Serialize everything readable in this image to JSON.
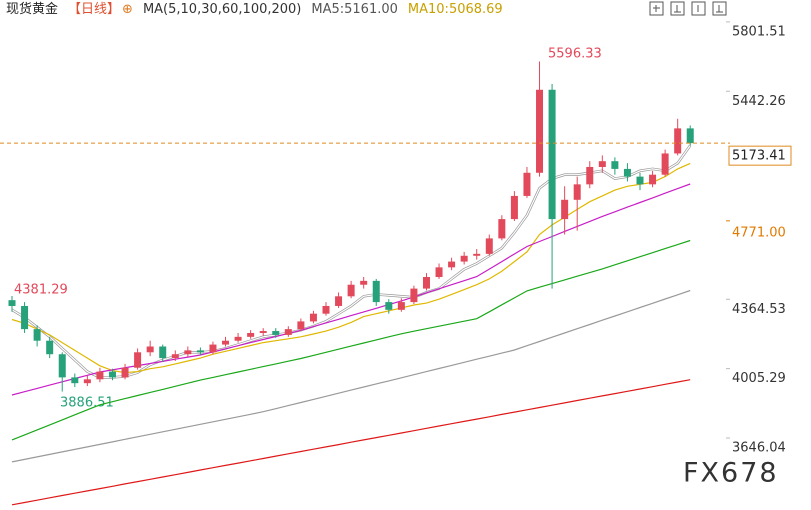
{
  "chart_data": {
    "type": "candlestick",
    "header": {
      "instrument": "现货黄金",
      "period": "【日线】",
      "ma_setting": "MA(5,10,30,60,100,200)",
      "ma5": "MA5:5161.00",
      "ma10": "MA10:5068.69"
    },
    "watermark": "FX678",
    "up_color": "#e2495b",
    "down_color": "#26a17a",
    "open": [
      4360,
      4330,
      4210,
      4150,
      4080,
      3960,
      3930,
      3950,
      3990,
      3960,
      4010,
      4090,
      4120,
      4060,
      4080,
      4100,
      4090,
      4130,
      4150,
      4170,
      4190,
      4200,
      4180,
      4210,
      4250,
      4290,
      4330,
      4380,
      4440,
      4460,
      4350,
      4310,
      4350,
      4420,
      4480,
      4530,
      4560,
      4590,
      4600,
      4680,
      4780,
      4900,
      5020,
      5450,
      4780,
      4880,
      4960,
      5050,
      5080,
      5040,
      5000,
      4960,
      5010,
      5120,
      5250
    ],
    "high": [
      4381.29,
      4350,
      4230,
      4170,
      4090,
      3980,
      3970,
      4010,
      4005,
      4030,
      4110,
      4150,
      4130,
      4100,
      4120,
      4115,
      4145,
      4170,
      4190,
      4205,
      4215,
      4215,
      4225,
      4265,
      4305,
      4350,
      4400,
      4460,
      4480,
      4470,
      4365,
      4370,
      4435,
      4500,
      4550,
      4580,
      4610,
      4625,
      4700,
      4800,
      4925,
      5050,
      5596.33,
      5480,
      4950,
      5000,
      5080,
      5110,
      5100,
      5070,
      5020,
      5030,
      5140,
      5300,
      5265
    ],
    "low": [
      4300,
      4190,
      4120,
      4060,
      3886.51,
      3910,
      3915,
      3935,
      3945,
      3950,
      4000,
      4070,
      4040,
      4045,
      4065,
      4075,
      4080,
      4120,
      4140,
      4160,
      4175,
      4165,
      4170,
      4200,
      4240,
      4280,
      4320,
      4370,
      4420,
      4330,
      4290,
      4300,
      4340,
      4410,
      4470,
      4515,
      4545,
      4570,
      4590,
      4670,
      4770,
      4890,
      5000,
      4420,
      4700,
      4720,
      4940,
      5020,
      5010,
      4975,
      4930,
      4945,
      5000,
      5110,
      5160
    ],
    "close": [
      4330,
      4210,
      4150,
      4080,
      3960,
      3930,
      3950,
      3990,
      3960,
      4010,
      4090,
      4120,
      4060,
      4080,
      4100,
      4090,
      4130,
      4150,
      4170,
      4190,
      4200,
      4180,
      4210,
      4250,
      4290,
      4330,
      4380,
      4440,
      4460,
      4350,
      4310,
      4350,
      4420,
      4480,
      4530,
      4560,
      4590,
      4600,
      4680,
      4780,
      4900,
      5020,
      5450,
      4780,
      4880,
      4960,
      5050,
      5080,
      5040,
      5000,
      4960,
      5010,
      5120,
      5250,
      5173.41
    ],
    "lines": [
      {
        "color": "#ffffff",
        "stroke": "#9a9a9a",
        "values": [
          4310,
          4270,
          4220,
          4170,
          4110,
          4050,
          3990,
          3960,
          3960,
          3965,
          3985,
          4025,
          4050,
          4070,
          4090,
          4090,
          4095,
          4110,
          4130,
          4150,
          4170,
          4180,
          4190,
          4205,
          4225,
          4250,
          4290,
          4330,
          4380,
          4390,
          4385,
          4380,
          4375,
          4400,
          4420,
          4470,
          4520,
          4550,
          4590,
          4630,
          4710,
          4800,
          4940,
          4990,
          5010,
          5010,
          5020,
          5030,
          4990,
          5000,
          5030,
          5040,
          5030,
          5070,
          5161.0
        ]
      },
      {
        "color": "#e0b800",
        "values": [
          4260,
          4240,
          4210,
          4180,
          4140,
          4100,
          4060,
          4020,
          3995,
          3985,
          3990,
          4005,
          4015,
          4030,
          4045,
          4060,
          4080,
          4095,
          4110,
          4125,
          4140,
          4150,
          4160,
          4170,
          4185,
          4200,
          4220,
          4245,
          4275,
          4290,
          4305,
          4320,
          4335,
          4345,
          4365,
          4390,
          4415,
          4440,
          4470,
          4510,
          4560,
          4610,
          4700,
          4750,
          4790,
          4830,
          4870,
          4900,
          4930,
          4950,
          4960,
          4970,
          5000,
          5040,
          5068.69
        ]
      },
      {
        "color": "#c81ec8",
        "values": [
          3869,
          3886,
          3903,
          3920,
          3937,
          3954,
          3971,
          3988,
          3999,
          4010,
          4021,
          4032,
          4043,
          4054,
          4065,
          4076,
          4092,
          4108,
          4124,
          4140,
          4156,
          4172,
          4188,
          4204,
          4223,
          4242,
          4261,
          4280,
          4299,
          4318,
          4337,
          4356,
          4377,
          4398,
          4419,
          4440,
          4461,
          4482,
          4521,
          4560,
          4599,
          4638,
          4664,
          4690,
          4716,
          4742,
          4768,
          4794,
          4818,
          4842,
          4866,
          4890,
          4914,
          4938,
          4962
        ]
      },
      {
        "color": "#1aa81a",
        "values": [
          3636,
          3662,
          3688,
          3714,
          3740,
          3766,
          3792,
          3818,
          3834,
          3850,
          3866,
          3882,
          3898,
          3914,
          3930,
          3946,
          3960,
          3974,
          3988,
          4002,
          4016,
          4030,
          4044,
          4058,
          4074,
          4090,
          4106,
          4122,
          4138,
          4154,
          4170,
          4186,
          4199,
          4212,
          4225,
          4238,
          4251,
          4264,
          4300,
          4336,
          4372,
          4408,
          4427,
          4446,
          4465,
          4484,
          4503,
          4522,
          4543,
          4564,
          4585,
          4606,
          4627,
          4648,
          4669
        ]
      },
      {
        "color": "#9a9a9a",
        "values": [
          3522,
          3535,
          3548,
          3561,
          3574,
          3587,
          3600,
          3613,
          3626,
          3639,
          3652,
          3665,
          3678,
          3691,
          3704,
          3717,
          3730,
          3743,
          3756,
          3769,
          3782,
          3798,
          3814,
          3830,
          3846,
          3862,
          3878,
          3894,
          3910,
          3926,
          3942,
          3958,
          3974,
          3990,
          4006,
          4022,
          4038,
          4054,
          4070,
          4086,
          4102,
          4124,
          4146,
          4168,
          4190,
          4212,
          4234,
          4256,
          4278,
          4300,
          4322,
          4344,
          4366,
          4388,
          4410
        ]
      },
      {
        "color": "#e01818",
        "values": [
          3300,
          3312,
          3324,
          3336,
          3348,
          3360,
          3372,
          3384,
          3396,
          3408,
          3420,
          3432,
          3444,
          3456,
          3468,
          3480,
          3492,
          3504,
          3516,
          3528,
          3540,
          3552,
          3564,
          3576,
          3588,
          3600,
          3612,
          3624,
          3636,
          3648,
          3660,
          3672,
          3684,
          3696,
          3708,
          3720,
          3732,
          3744,
          3756,
          3768,
          3780,
          3792,
          3804,
          3816,
          3828,
          3840,
          3852,
          3864,
          3876,
          3888,
          3900,
          3912,
          3924,
          3936,
          3948
        ]
      }
    ],
    "annotations": [
      "5596.33",
      "4381.29",
      "3886.51"
    ],
    "marked_level": {
      "value": 4771,
      "label": "4771.00"
    },
    "ylim": [
      3273,
      5915
    ],
    "yticks": [
      5801.51,
      5442.26,
      4364.53,
      4005.29,
      3646.04
    ]
  }
}
